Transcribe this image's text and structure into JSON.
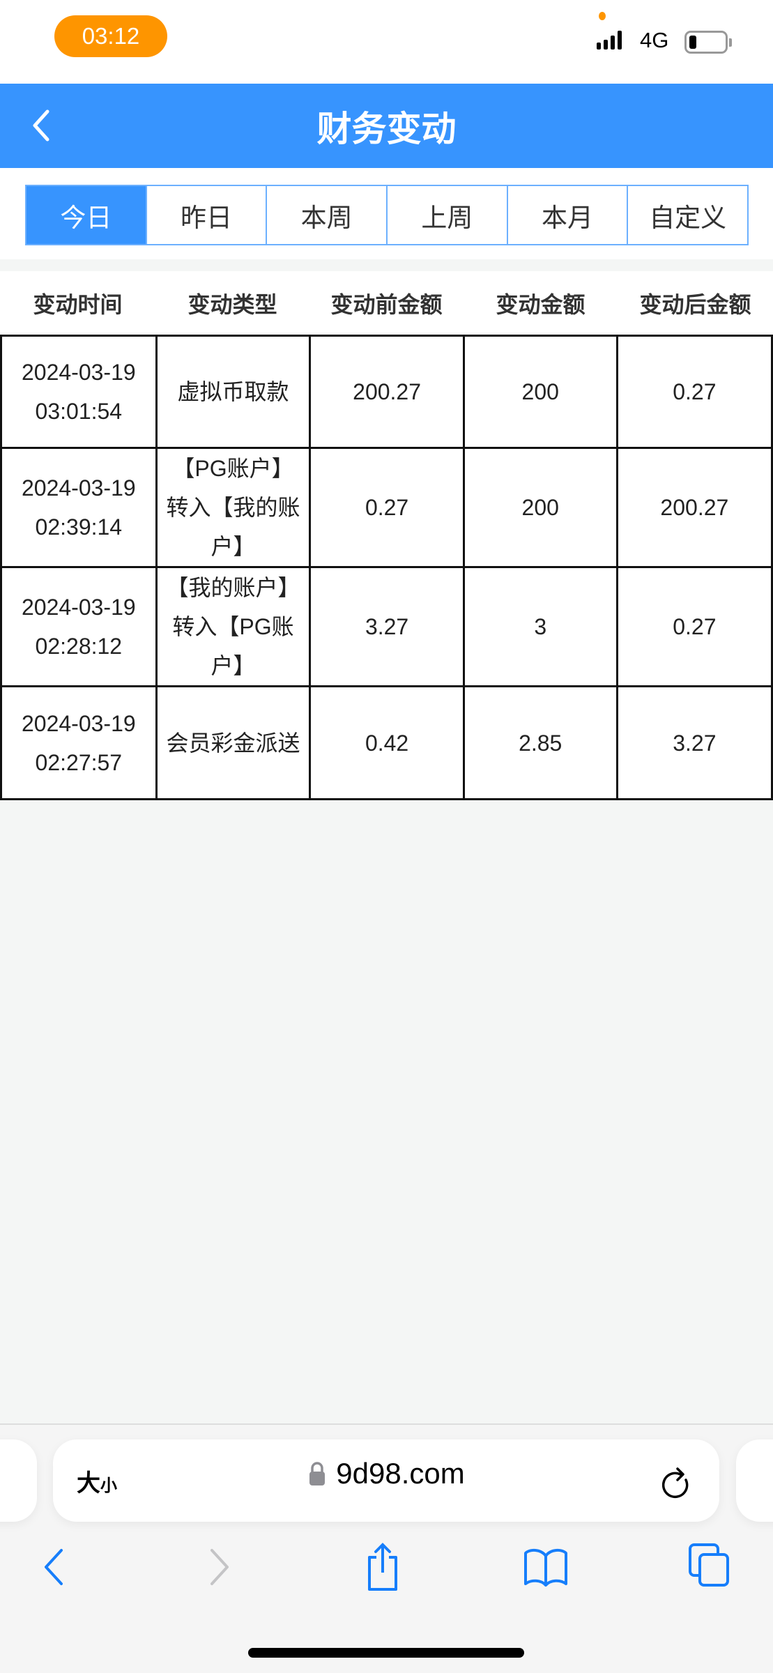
{
  "status_bar": {
    "time": "03:12",
    "network": "4G",
    "battery_icon": "battery-low-icon",
    "signal_icon": "signal-icon"
  },
  "header": {
    "title": "财务变动",
    "back_icon": "chevron-left-icon",
    "color": "#3794fe"
  },
  "tabs": [
    {
      "label": "今日",
      "active": true
    },
    {
      "label": "昨日",
      "active": false
    },
    {
      "label": "本周",
      "active": false
    },
    {
      "label": "上周",
      "active": false
    },
    {
      "label": "本月",
      "active": false
    },
    {
      "label": "自定义",
      "active": false
    }
  ],
  "table": {
    "columns": [
      "变动时间",
      "变动类型",
      "变动前金额",
      "变动金额",
      "变动后金额"
    ],
    "rows": [
      {
        "date": "2024-03-19",
        "time": "03:01:54",
        "type": [
          "虚拟币取款"
        ],
        "before": "200.27",
        "amount": "200",
        "after": "0.27"
      },
      {
        "date": "2024-03-19",
        "time": "02:39:14",
        "type": [
          "【PG账户】",
          "转入【我的账",
          "户】"
        ],
        "before": "0.27",
        "amount": "200",
        "after": "200.27"
      },
      {
        "date": "2024-03-19",
        "time": "02:28:12",
        "type": [
          "【我的账户】",
          "转入【PG账",
          "户】"
        ],
        "before": "3.27",
        "amount": "3",
        "after": "0.27"
      },
      {
        "date": "2024-03-19",
        "time": "02:27:57",
        "type": [
          "会员彩金派送"
        ],
        "before": "0.42",
        "amount": "2.85",
        "after": "3.27"
      }
    ]
  },
  "browser": {
    "text_size_label_big": "大",
    "text_size_label_small": "小",
    "url": "9d98.com",
    "icons": [
      "lock-icon",
      "reload-icon",
      "back-icon",
      "forward-icon",
      "share-icon",
      "bookmarks-icon",
      "tabs-icon"
    ]
  }
}
